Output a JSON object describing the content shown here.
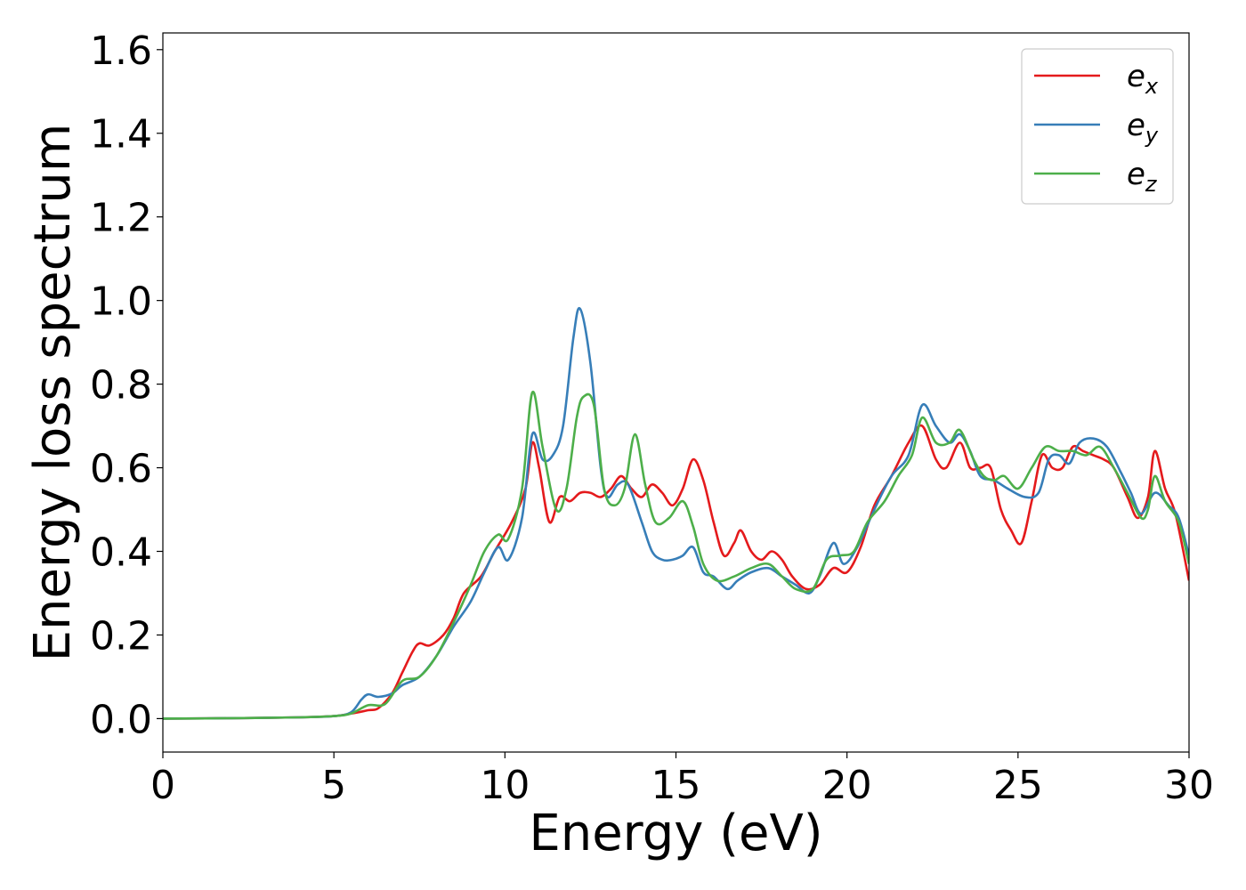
{
  "chart_data": {
    "type": "line",
    "xlabel": "Energy (eV)",
    "ylabel": "Energy loss spectrum",
    "xlim": [
      0,
      30
    ],
    "ylim": [
      -0.08,
      1.64
    ],
    "xticks": [
      0,
      5,
      10,
      15,
      20,
      25,
      30
    ],
    "xtick_labels": [
      "0",
      "5",
      "10",
      "15",
      "20",
      "25",
      "30"
    ],
    "yticks": [
      0.0,
      0.2,
      0.4,
      0.6,
      0.8,
      1.0,
      1.2,
      1.4,
      1.6
    ],
    "ytick_labels": [
      "0.0",
      "0.2",
      "0.4",
      "0.6",
      "0.8",
      "1.0",
      "1.2",
      "1.4",
      "1.6"
    ],
    "grid": false,
    "legend_position": "top-right",
    "series": [
      {
        "name": "e_x",
        "label_base": "e",
        "label_sub": "x",
        "color": "#e41a1c",
        "points": [
          [
            0,
            0
          ],
          [
            2,
            0.001
          ],
          [
            4,
            0.003
          ],
          [
            5,
            0.006
          ],
          [
            5.5,
            0.012
          ],
          [
            6,
            0.02
          ],
          [
            6.3,
            0.025
          ],
          [
            6.7,
            0.06
          ],
          [
            7,
            0.11
          ],
          [
            7.3,
            0.16
          ],
          [
            7.5,
            0.18
          ],
          [
            7.8,
            0.175
          ],
          [
            8.2,
            0.2
          ],
          [
            8.5,
            0.24
          ],
          [
            8.8,
            0.3
          ],
          [
            9.3,
            0.34
          ],
          [
            9.7,
            0.4
          ],
          [
            10.2,
            0.47
          ],
          [
            10.6,
            0.55
          ],
          [
            10.8,
            0.66
          ],
          [
            11.0,
            0.6
          ],
          [
            11.3,
            0.47
          ],
          [
            11.6,
            0.53
          ],
          [
            11.9,
            0.52
          ],
          [
            12.2,
            0.54
          ],
          [
            12.5,
            0.54
          ],
          [
            12.8,
            0.53
          ],
          [
            13.1,
            0.55
          ],
          [
            13.4,
            0.58
          ],
          [
            13.7,
            0.55
          ],
          [
            14.0,
            0.53
          ],
          [
            14.3,
            0.56
          ],
          [
            14.6,
            0.54
          ],
          [
            14.9,
            0.51
          ],
          [
            15.2,
            0.55
          ],
          [
            15.5,
            0.62
          ],
          [
            15.8,
            0.57
          ],
          [
            16.1,
            0.47
          ],
          [
            16.4,
            0.39
          ],
          [
            16.7,
            0.42
          ],
          [
            16.9,
            0.45
          ],
          [
            17.2,
            0.4
          ],
          [
            17.5,
            0.38
          ],
          [
            17.8,
            0.4
          ],
          [
            18.1,
            0.38
          ],
          [
            18.4,
            0.34
          ],
          [
            18.8,
            0.31
          ],
          [
            19.2,
            0.32
          ],
          [
            19.6,
            0.36
          ],
          [
            20.0,
            0.35
          ],
          [
            20.4,
            0.41
          ],
          [
            20.8,
            0.51
          ],
          [
            21.3,
            0.58
          ],
          [
            21.8,
            0.66
          ],
          [
            22.2,
            0.7
          ],
          [
            22.6,
            0.62
          ],
          [
            22.9,
            0.6
          ],
          [
            23.3,
            0.66
          ],
          [
            23.6,
            0.6
          ],
          [
            23.9,
            0.6
          ],
          [
            24.2,
            0.6
          ],
          [
            24.5,
            0.5
          ],
          [
            24.8,
            0.45
          ],
          [
            25.1,
            0.42
          ],
          [
            25.4,
            0.52
          ],
          [
            25.7,
            0.63
          ],
          [
            26.0,
            0.6
          ],
          [
            26.3,
            0.6
          ],
          [
            26.6,
            0.65
          ],
          [
            26.9,
            0.64
          ],
          [
            27.2,
            0.63
          ],
          [
            27.5,
            0.62
          ],
          [
            27.8,
            0.6
          ],
          [
            28.2,
            0.53
          ],
          [
            28.5,
            0.48
          ],
          [
            28.8,
            0.53
          ],
          [
            29.0,
            0.64
          ],
          [
            29.3,
            0.55
          ],
          [
            29.6,
            0.49
          ],
          [
            30.0,
            0.33
          ]
        ]
      },
      {
        "name": "e_y",
        "label_base": "e",
        "label_sub": "y",
        "color": "#377eb8",
        "points": [
          [
            0,
            0
          ],
          [
            2,
            0.001
          ],
          [
            4,
            0.003
          ],
          [
            5,
            0.006
          ],
          [
            5.5,
            0.015
          ],
          [
            5.8,
            0.045
          ],
          [
            6.0,
            0.058
          ],
          [
            6.3,
            0.052
          ],
          [
            6.7,
            0.06
          ],
          [
            7.0,
            0.08
          ],
          [
            7.5,
            0.1
          ],
          [
            8.0,
            0.15
          ],
          [
            8.5,
            0.22
          ],
          [
            9.0,
            0.28
          ],
          [
            9.4,
            0.35
          ],
          [
            9.8,
            0.41
          ],
          [
            10.1,
            0.38
          ],
          [
            10.5,
            0.48
          ],
          [
            10.8,
            0.68
          ],
          [
            11.1,
            0.62
          ],
          [
            11.4,
            0.63
          ],
          [
            11.7,
            0.7
          ],
          [
            12.0,
            0.91
          ],
          [
            12.2,
            0.98
          ],
          [
            12.5,
            0.85
          ],
          [
            12.8,
            0.6
          ],
          [
            13.0,
            0.53
          ],
          [
            13.3,
            0.56
          ],
          [
            13.6,
            0.56
          ],
          [
            14.0,
            0.47
          ],
          [
            14.3,
            0.4
          ],
          [
            14.6,
            0.38
          ],
          [
            14.9,
            0.38
          ],
          [
            15.2,
            0.39
          ],
          [
            15.5,
            0.41
          ],
          [
            15.8,
            0.35
          ],
          [
            16.1,
            0.34
          ],
          [
            16.5,
            0.31
          ],
          [
            16.8,
            0.33
          ],
          [
            17.2,
            0.35
          ],
          [
            17.7,
            0.36
          ],
          [
            18.1,
            0.34
          ],
          [
            18.5,
            0.32
          ],
          [
            18.9,
            0.3
          ],
          [
            19.2,
            0.34
          ],
          [
            19.6,
            0.42
          ],
          [
            19.9,
            0.37
          ],
          [
            20.3,
            0.41
          ],
          [
            20.8,
            0.5
          ],
          [
            21.3,
            0.58
          ],
          [
            21.8,
            0.63
          ],
          [
            22.2,
            0.75
          ],
          [
            22.6,
            0.7
          ],
          [
            23.0,
            0.66
          ],
          [
            23.3,
            0.68
          ],
          [
            23.6,
            0.64
          ],
          [
            23.9,
            0.58
          ],
          [
            24.3,
            0.57
          ],
          [
            24.7,
            0.55
          ],
          [
            25.2,
            0.53
          ],
          [
            25.6,
            0.54
          ],
          [
            25.9,
            0.62
          ],
          [
            26.2,
            0.63
          ],
          [
            26.5,
            0.61
          ],
          [
            26.8,
            0.66
          ],
          [
            27.2,
            0.67
          ],
          [
            27.6,
            0.65
          ],
          [
            28.0,
            0.59
          ],
          [
            28.3,
            0.54
          ],
          [
            28.6,
            0.49
          ],
          [
            29.0,
            0.54
          ],
          [
            29.4,
            0.51
          ],
          [
            29.7,
            0.48
          ],
          [
            30.0,
            0.39
          ]
        ]
      },
      {
        "name": "e_z",
        "label_base": "e",
        "label_sub": "z",
        "color": "#4daf4a",
        "points": [
          [
            0,
            0
          ],
          [
            2,
            0.001
          ],
          [
            4,
            0.003
          ],
          [
            5,
            0.006
          ],
          [
            5.5,
            0.012
          ],
          [
            6.0,
            0.032
          ],
          [
            6.5,
            0.035
          ],
          [
            7.0,
            0.09
          ],
          [
            7.5,
            0.1
          ],
          [
            8.0,
            0.15
          ],
          [
            8.5,
            0.23
          ],
          [
            9.0,
            0.32
          ],
          [
            9.4,
            0.4
          ],
          [
            9.8,
            0.44
          ],
          [
            10.1,
            0.43
          ],
          [
            10.5,
            0.55
          ],
          [
            10.8,
            0.78
          ],
          [
            11.1,
            0.65
          ],
          [
            11.5,
            0.5
          ],
          [
            11.8,
            0.55
          ],
          [
            12.1,
            0.72
          ],
          [
            12.3,
            0.77
          ],
          [
            12.6,
            0.75
          ],
          [
            12.9,
            0.55
          ],
          [
            13.2,
            0.51
          ],
          [
            13.5,
            0.55
          ],
          [
            13.8,
            0.68
          ],
          [
            14.1,
            0.56
          ],
          [
            14.4,
            0.47
          ],
          [
            14.8,
            0.48
          ],
          [
            15.2,
            0.52
          ],
          [
            15.5,
            0.46
          ],
          [
            15.8,
            0.37
          ],
          [
            16.2,
            0.33
          ],
          [
            16.7,
            0.34
          ],
          [
            17.2,
            0.36
          ],
          [
            17.7,
            0.37
          ],
          [
            18.1,
            0.34
          ],
          [
            18.5,
            0.31
          ],
          [
            19.0,
            0.31
          ],
          [
            19.4,
            0.38
          ],
          [
            19.8,
            0.39
          ],
          [
            20.2,
            0.4
          ],
          [
            20.6,
            0.47
          ],
          [
            21.1,
            0.52
          ],
          [
            21.5,
            0.58
          ],
          [
            21.9,
            0.63
          ],
          [
            22.2,
            0.72
          ],
          [
            22.6,
            0.66
          ],
          [
            23.0,
            0.66
          ],
          [
            23.3,
            0.69
          ],
          [
            23.7,
            0.62
          ],
          [
            24.0,
            0.58
          ],
          [
            24.3,
            0.57
          ],
          [
            24.6,
            0.58
          ],
          [
            25.0,
            0.55
          ],
          [
            25.4,
            0.6
          ],
          [
            25.8,
            0.65
          ],
          [
            26.2,
            0.64
          ],
          [
            26.6,
            0.64
          ],
          [
            27.0,
            0.63
          ],
          [
            27.4,
            0.65
          ],
          [
            27.8,
            0.6
          ],
          [
            28.2,
            0.54
          ],
          [
            28.6,
            0.48
          ],
          [
            28.8,
            0.5
          ],
          [
            29.0,
            0.58
          ],
          [
            29.3,
            0.52
          ],
          [
            29.7,
            0.47
          ],
          [
            30.0,
            0.37
          ]
        ]
      }
    ]
  }
}
